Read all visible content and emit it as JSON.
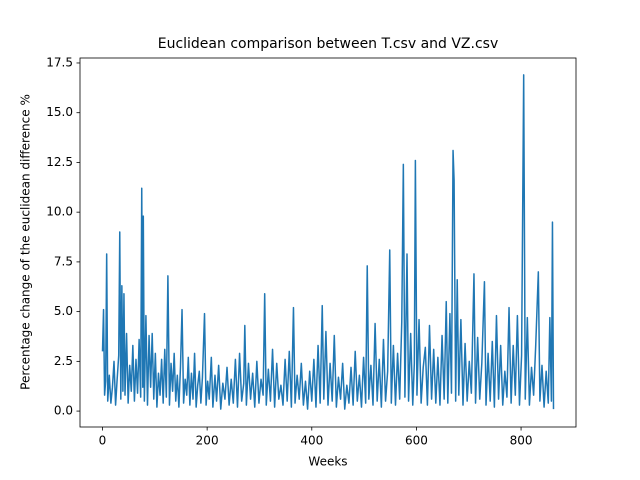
{
  "chart_data": {
    "type": "line",
    "title": "Euclidean comparison between T.csv and VZ.csv",
    "xlabel": "Weeks",
    "ylabel": "Percentage change of the euclidean difference %",
    "color": "#1f77b4",
    "xlim": [
      -43,
      905
    ],
    "ylim": [
      -0.8,
      17.75
    ],
    "xticks": [
      0,
      200,
      400,
      600,
      800
    ],
    "yticks": [
      {
        "value": 0,
        "label": "0.0"
      },
      2.5,
      {
        "value": 5,
        "label": "5.0"
      },
      7.5,
      {
        "value": 10,
        "label": "10.0"
      },
      12.5,
      {
        "value": 15,
        "label": "15.0"
      },
      17.5
    ],
    "x": [
      0,
      2,
      4,
      6,
      8,
      10,
      13,
      16,
      19,
      22,
      25,
      28,
      31,
      33,
      35,
      37,
      39,
      41,
      43,
      46,
      49,
      52,
      55,
      58,
      61,
      64,
      67,
      70,
      73,
      75,
      77,
      78,
      80,
      83,
      86,
      89,
      92,
      95,
      98,
      101,
      104,
      107,
      110,
      113,
      116,
      119,
      122,
      125,
      128,
      131,
      134,
      137,
      140,
      143,
      146,
      149,
      152,
      155,
      158,
      161,
      164,
      167,
      170,
      173,
      176,
      179,
      182,
      185,
      188,
      191,
      195,
      198,
      201,
      204,
      208,
      211,
      215,
      218,
      222,
      226,
      230,
      234,
      238,
      242,
      246,
      250,
      254,
      258,
      262,
      266,
      270,
      272,
      275,
      279,
      283,
      287,
      291,
      295,
      299,
      303,
      307,
      310,
      313,
      317,
      321,
      325,
      329,
      333,
      337,
      341,
      345,
      349,
      353,
      357,
      361,
      365,
      368,
      372,
      376,
      380,
      384,
      388,
      392,
      396,
      400,
      404,
      408,
      412,
      416,
      420,
      423,
      427,
      431,
      435,
      439,
      443,
      447,
      451,
      455,
      459,
      463,
      467,
      471,
      475,
      479,
      483,
      487,
      491,
      495,
      499,
      503,
      506,
      509,
      513,
      517,
      521,
      525,
      529,
      533,
      537,
      541,
      545,
      549,
      552,
      556,
      560,
      564,
      568,
      572,
      575,
      578,
      582,
      585,
      589,
      593,
      596,
      598,
      601,
      605,
      609,
      613,
      617,
      621,
      625,
      629,
      633,
      637,
      641,
      645,
      649,
      653,
      657,
      660,
      664,
      667,
      670,
      672,
      675,
      678,
      681,
      685,
      689,
      693,
      697,
      701,
      705,
      710,
      713,
      717,
      721,
      725,
      730,
      733,
      737,
      741,
      745,
      749,
      753,
      757,
      761,
      765,
      769,
      773,
      777,
      781,
      785,
      789,
      793,
      797,
      801,
      805,
      808,
      812,
      816,
      820,
      824,
      828,
      833,
      836,
      840,
      844,
      848,
      852,
      855,
      858,
      860,
      862
    ],
    "values": [
      3.0,
      5.1,
      0.8,
      1.5,
      7.9,
      0.5,
      1.8,
      0.4,
      1.2,
      2.5,
      0.3,
      1.6,
      2.8,
      9.0,
      0.6,
      6.3,
      1.0,
      5.9,
      0.8,
      3.9,
      0.4,
      2.3,
      1.0,
      3.3,
      0.5,
      2.6,
      0.9,
      3.6,
      0.7,
      11.2,
      1.2,
      9.8,
      0.5,
      4.8,
      0.3,
      3.8,
      1.2,
      3.9,
      0.6,
      2.9,
      0.2,
      1.9,
      0.8,
      2.6,
      0.4,
      3.1,
      0.7,
      6.8,
      0.3,
      2.4,
      1.0,
      2.9,
      0.5,
      1.8,
      0.2,
      2.2,
      5.1,
      0.4,
      1.6,
      0.8,
      2.7,
      0.3,
      1.9,
      0.6,
      2.9,
      0.2,
      1.3,
      2.0,
      0.4,
      1.7,
      4.9,
      0.3,
      1.5,
      0.6,
      2.7,
      0.2,
      1.8,
      0.5,
      2.3,
      0.1,
      1.4,
      0.6,
      2.2,
      0.3,
      1.6,
      0.4,
      2.6,
      0.2,
      2.9,
      0.5,
      1.4,
      4.3,
      0.3,
      2.4,
      0.6,
      1.9,
      0.2,
      2.5,
      0.4,
      1.6,
      0.8,
      5.9,
      0.3,
      2.1,
      0.5,
      3.1,
      0.2,
      2.4,
      0.6,
      1.3,
      0.3,
      2.6,
      0.5,
      3.0,
      0.2,
      5.2,
      0.4,
      1.8,
      0.6,
      2.4,
      0.3,
      1.5,
      0.1,
      2.0,
      0.5,
      2.6,
      0.2,
      3.3,
      0.4,
      5.3,
      0.6,
      4.0,
      0.3,
      2.4,
      0.5,
      3.8,
      0.2,
      1.7,
      0.6,
      2.4,
      0.1,
      1.3,
      0.4,
      2.2,
      0.3,
      3.0,
      0.5,
      1.8,
      0.2,
      2.7,
      0.4,
      7.3,
      0.6,
      2.3,
      0.3,
      4.4,
      0.5,
      2.6,
      0.2,
      3.6,
      0.5,
      2.0,
      8.1,
      0.4,
      3.3,
      0.3,
      2.9,
      0.6,
      4.5,
      12.4,
      0.7,
      7.9,
      0.5,
      3.9,
      0.3,
      2.4,
      12.6,
      0.8,
      4.6,
      0.4,
      2.2,
      3.2,
      0.3,
      4.3,
      0.6,
      3.1,
      0.4,
      2.7,
      0.3,
      3.8,
      0.6,
      5.5,
      0.4,
      4.9,
      0.9,
      13.1,
      11.6,
      0.5,
      6.6,
      0.8,
      4.6,
      0.3,
      3.4,
      0.5,
      2.5,
      0.9,
      6.9,
      0.4,
      3.7,
      0.6,
      2.4,
      6.5,
      0.3,
      2.9,
      0.5,
      3.5,
      0.2,
      4.8,
      0.6,
      3.3,
      0.3,
      2.0,
      0.7,
      5.2,
      0.4,
      3.3,
      0.8,
      4.8,
      0.3,
      2.8,
      16.9,
      0.6,
      4.7,
      0.3,
      2.2,
      0.8,
      3.3,
      7.0,
      0.5,
      2.3,
      0.2,
      2.0,
      0.4,
      4.7,
      0.5,
      9.5,
      0.1
    ]
  }
}
